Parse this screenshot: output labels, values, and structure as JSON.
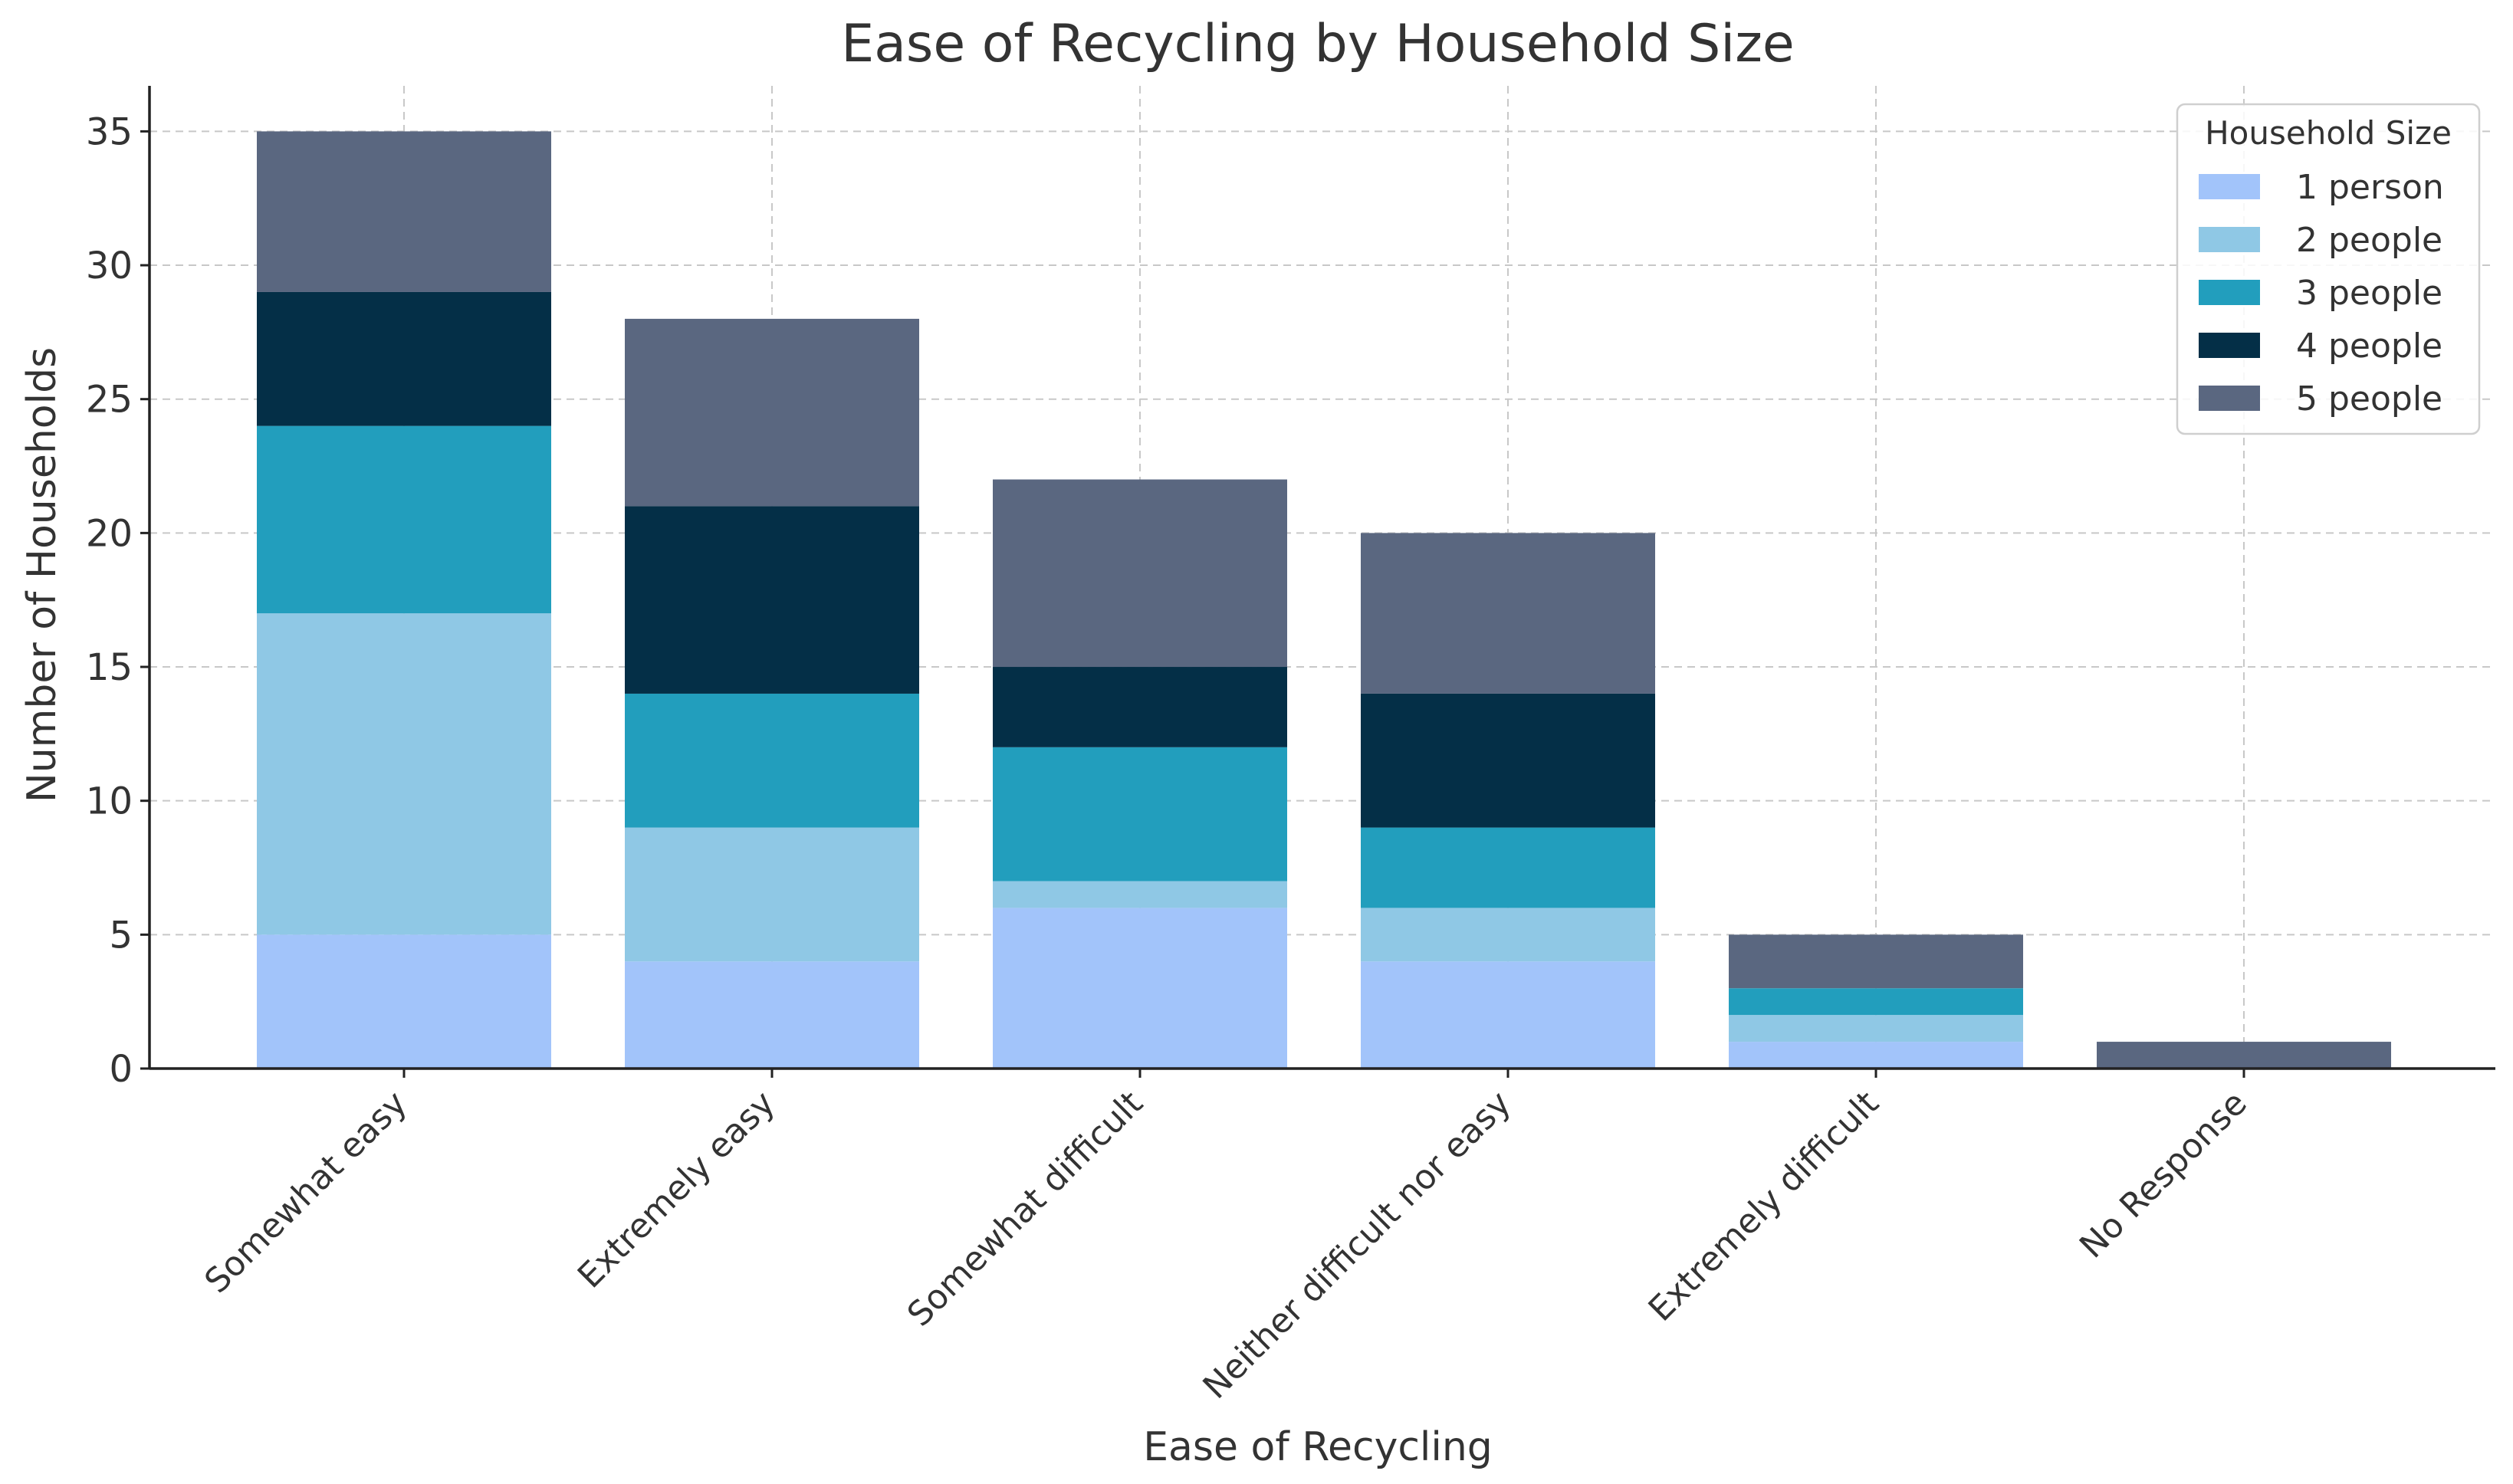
{
  "chart_data": {
    "type": "bar",
    "stacked": true,
    "title": "Ease of Recycling by Household Size",
    "xlabel": "Ease of Recycling",
    "ylabel": "Number of Households",
    "ylim": [
      0,
      36.7
    ],
    "yticks": [
      "0",
      "5",
      "10",
      "15",
      "20",
      "25",
      "30",
      "35"
    ],
    "grid": true,
    "categories": [
      "Somewhat easy",
      "Extremely easy",
      "Somewhat difficult",
      "Neither difficult nor easy",
      "Extremely difficult",
      "No Response"
    ],
    "legend": {
      "title": "Household Size",
      "placement": "top-right"
    },
    "series": [
      {
        "name": "1 person",
        "color": "#a2c4fa",
        "values": [
          5,
          4,
          6,
          4,
          1,
          0
        ]
      },
      {
        "name": "2 people",
        "color": "#8fc8e5",
        "values": [
          12,
          5,
          1,
          2,
          1,
          0
        ]
      },
      {
        "name": "3 people",
        "color": "#229ebd",
        "values": [
          7,
          5,
          5,
          3,
          1,
          0
        ]
      },
      {
        "name": "4 people",
        "color": "#042f47",
        "values": [
          5,
          7,
          3,
          5,
          0,
          0
        ]
      },
      {
        "name": "5 people",
        "color": "#5a6780",
        "values": [
          6,
          7,
          7,
          6,
          2,
          1
        ]
      }
    ]
  }
}
